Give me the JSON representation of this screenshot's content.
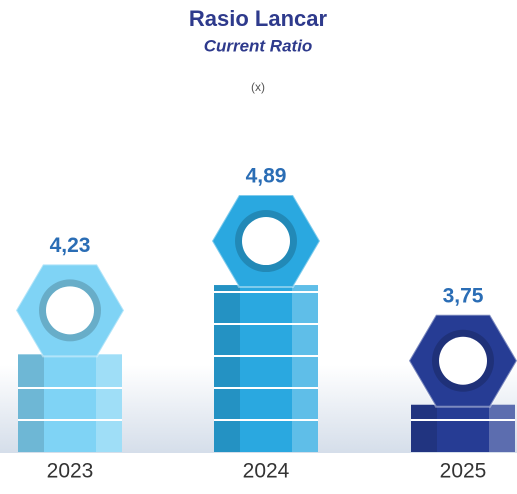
{
  "chart_data": {
    "type": "bar",
    "title": "Rasio Lancar",
    "subtitle": "Current Ratio",
    "unit": "(x)",
    "categories": [
      "2023",
      "2024",
      "2025"
    ],
    "values": [
      4.23,
      4.89,
      3.75
    ],
    "value_labels": [
      "4,23",
      "4,89",
      "3,75"
    ],
    "colors": [
      "#7fd3f5",
      "#2aa8e0",
      "#263c94"
    ],
    "ylim": [
      3.3,
      5.3
    ]
  }
}
